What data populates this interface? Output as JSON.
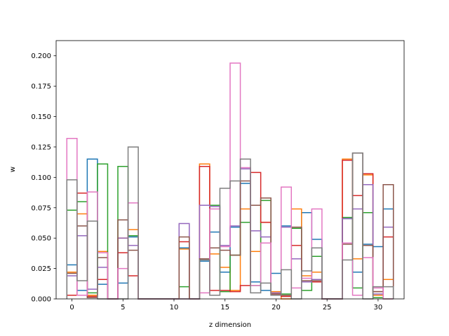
{
  "chart_data": {
    "type": "step",
    "title": "",
    "xlabel": "z dimension",
    "ylabel": "w",
    "xlim": [
      -1.55,
      32.55
    ],
    "ylim": [
      0,
      0.2125
    ],
    "xticks": [
      0,
      5,
      10,
      15,
      20,
      25,
      30
    ],
    "yticks": [
      0.0,
      0.025,
      0.05,
      0.075,
      0.1,
      0.125,
      0.15,
      0.175,
      0.2
    ],
    "ytick_labels": [
      "0.000",
      "0.025",
      "0.050",
      "0.075",
      "0.100",
      "0.125",
      "0.150",
      "0.175",
      "0.200"
    ],
    "grid": false,
    "bin_edges": [
      -0.5,
      0.5,
      1.5,
      2.5,
      3.5,
      4.5,
      5.5,
      6.5,
      7.5,
      8.5,
      9.5,
      10.5,
      11.5,
      12.5,
      13.5,
      14.5,
      15.5,
      16.5,
      17.5,
      18.5,
      19.5,
      20.5,
      21.5,
      22.5,
      23.5,
      24.5,
      25.5,
      26.5,
      27.5,
      28.5,
      29.5,
      30.5,
      31.5
    ],
    "series": [
      {
        "color": "#1f77b4",
        "values": [
          0.028,
          0.007,
          0.115,
          0.012,
          0.0,
          0.013,
          0.051,
          0.0,
          0.0,
          0.0,
          0.0,
          0.042,
          0.0,
          0.031,
          0.055,
          0.022,
          0.059,
          0.095,
          0.014,
          0.007,
          0.021,
          0.06,
          0.033,
          0.071,
          0.049,
          0.0,
          0.0,
          0.066,
          0.022,
          0.045,
          0.043,
          0.074
        ]
      },
      {
        "color": "#ff7f0e",
        "values": [
          0.022,
          0.07,
          0.003,
          0.039,
          0.0,
          0.05,
          0.057,
          0.0,
          0.0,
          0.0,
          0.0,
          0.041,
          0.0,
          0.111,
          0.037,
          0.026,
          0.007,
          0.074,
          0.039,
          0.063,
          0.006,
          0.0,
          0.074,
          0.019,
          0.022,
          0.0,
          0.0,
          0.115,
          0.033,
          0.102,
          0.003,
          0.016
        ]
      },
      {
        "color": "#2ca02c",
        "values": [
          0.073,
          0.08,
          0.005,
          0.111,
          0.0,
          0.109,
          0.052,
          0.0,
          0.0,
          0.0,
          0.0,
          0.01,
          0.0,
          0.033,
          0.077,
          0.006,
          0.036,
          0.063,
          0.011,
          0.081,
          0.003,
          0.004,
          0.058,
          0.007,
          0.035,
          0.0,
          0.0,
          0.067,
          0.009,
          0.071,
          0.001,
          0.0
        ]
      },
      {
        "color": "#d62728",
        "values": [
          0.003,
          0.087,
          0.002,
          0.016,
          0.0,
          0.038,
          0.019,
          0.0,
          0.0,
          0.0,
          0.0,
          0.047,
          0.0,
          0.109,
          0.007,
          0.007,
          0.006,
          0.011,
          0.104,
          0.063,
          0.004,
          0.002,
          0.044,
          0.014,
          0.014,
          0.0,
          0.0,
          0.114,
          0.085,
          0.103,
          0.006,
          0.051
        ]
      },
      {
        "color": "#9467bd",
        "values": [
          0.019,
          0.052,
          0.008,
          0.026,
          0.0,
          0.05,
          0.044,
          0.0,
          0.0,
          0.0,
          0.0,
          0.062,
          0.0,
          0.077,
          0.076,
          0.044,
          0.06,
          0.107,
          0.056,
          0.051,
          0.005,
          0.059,
          0.033,
          0.014,
          0.016,
          0.0,
          0.0,
          0.066,
          0.074,
          0.094,
          0.004,
          0.059
        ]
      },
      {
        "color": "#8c564b",
        "values": [
          0.021,
          0.06,
          0.001,
          0.034,
          0.0,
          0.065,
          0.04,
          0.0,
          0.0,
          0.0,
          0.0,
          0.051,
          0.0,
          0.033,
          0.042,
          0.04,
          0.036,
          0.097,
          0.077,
          0.083,
          0.004,
          0.003,
          0.059,
          0.015,
          0.015,
          0.0,
          0.0,
          0.045,
          0.12,
          0.044,
          0.006,
          0.094
        ]
      },
      {
        "color": "#e377c2",
        "values": [
          0.132,
          0.003,
          0.088,
          0.038,
          0.0,
          0.025,
          0.079,
          0.0,
          0.0,
          0.0,
          0.0,
          0.0,
          0.0,
          0.005,
          0.074,
          0.043,
          0.194,
          0.108,
          0.011,
          0.046,
          0.003,
          0.092,
          0.009,
          0.017,
          0.074,
          0.0,
          0.0,
          0.046,
          0.003,
          0.034,
          0.009,
          0.0
        ]
      },
      {
        "color": "#7f7f7f",
        "values": [
          0.098,
          0.015,
          0.064,
          0.0,
          0.0,
          0.0,
          0.125,
          0.0,
          0.0,
          0.0,
          0.0,
          0.0,
          0.0,
          0.032,
          0.003,
          0.091,
          0.097,
          0.115,
          0.005,
          0.013,
          0.003,
          0.024,
          0.0,
          0.023,
          0.042,
          0.0,
          0.0,
          0.032,
          0.12,
          0.0,
          0.01,
          0.01
        ]
      }
    ]
  }
}
